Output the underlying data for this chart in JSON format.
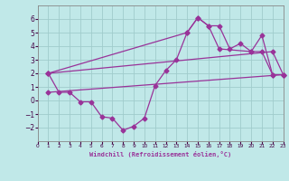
{
  "xlabel": "Windchill (Refroidissement éolien,°C)",
  "bg_color": "#c0e8e8",
  "grid_color": "#a0cccc",
  "line_color": "#993399",
  "xlim": [
    0,
    23
  ],
  "ylim": [
    -3,
    7
  ],
  "xticks": [
    0,
    1,
    2,
    3,
    4,
    5,
    6,
    7,
    8,
    9,
    10,
    11,
    12,
    13,
    14,
    15,
    16,
    17,
    18,
    19,
    20,
    21,
    22,
    23
  ],
  "yticks": [
    -2,
    -1,
    0,
    1,
    2,
    3,
    4,
    5,
    6
  ],
  "line1_x": [
    1,
    2,
    3,
    4,
    5,
    6,
    7,
    8,
    9,
    10,
    11,
    12,
    13,
    14,
    15,
    16,
    17,
    18,
    19,
    20,
    21,
    22
  ],
  "line1_y": [
    2.0,
    0.6,
    0.6,
    -0.1,
    -0.1,
    -1.2,
    -1.3,
    -2.2,
    -1.9,
    -1.3,
    1.1,
    2.2,
    3.0,
    5.0,
    6.1,
    5.5,
    5.5,
    3.8,
    4.2,
    3.6,
    3.6,
    1.9
  ],
  "line2_x": [
    1,
    22,
    23
  ],
  "line2_y": [
    2.0,
    3.6,
    1.9
  ],
  "line3_x": [
    1,
    14,
    15,
    16,
    17,
    20,
    21,
    22,
    23
  ],
  "line3_y": [
    2.0,
    5.0,
    6.1,
    5.5,
    3.8,
    3.6,
    4.8,
    1.9,
    1.9
  ],
  "line4_x": [
    1,
    23
  ],
  "line4_y": [
    0.6,
    1.9
  ],
  "markersize": 2.5,
  "linewidth": 0.9
}
